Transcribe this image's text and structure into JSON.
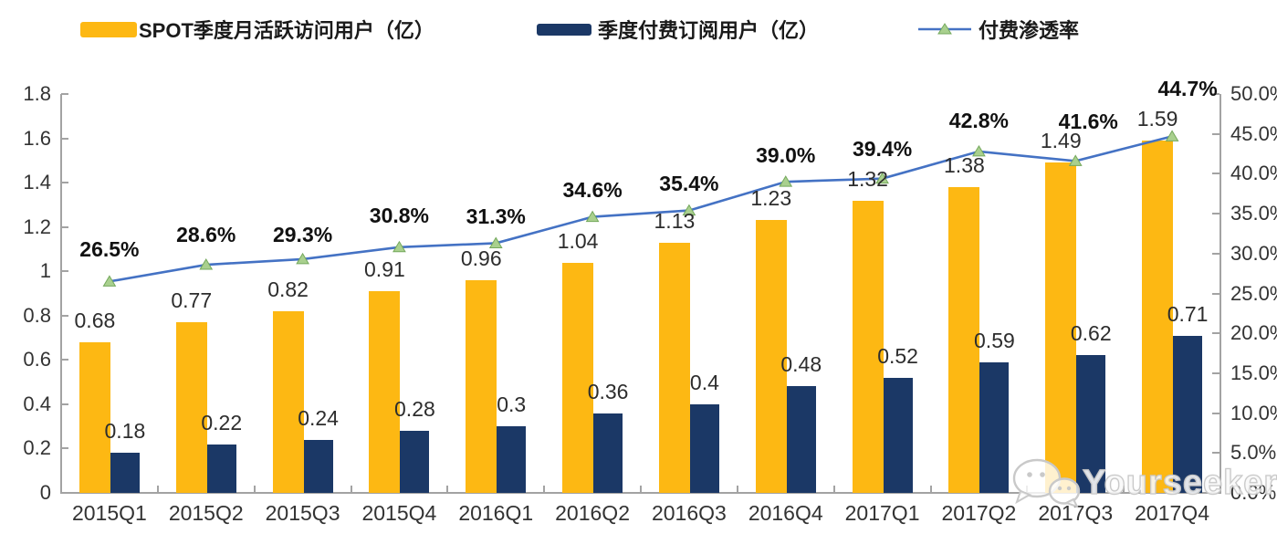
{
  "legend": {
    "items": [
      {
        "id": "mau",
        "label": "SPOT季度月活跃访问用户（亿）",
        "swatch": "bar",
        "color": "#FDB813"
      },
      {
        "id": "subs",
        "label": "季度付费订阅用户（亿）",
        "swatch": "bar",
        "color": "#1B3866"
      },
      {
        "id": "penetration",
        "label": "付费渗透率",
        "swatch": "line",
        "color": "#4472C4",
        "marker_color": "#A9D08E",
        "marker_edge": "#74A85C"
      }
    ]
  },
  "chart_data": {
    "type": "bar",
    "subtype": "combo-bar-line",
    "categories": [
      "2015Q1",
      "2015Q2",
      "2015Q3",
      "2015Q4",
      "2016Q1",
      "2016Q2",
      "2016Q3",
      "2016Q4",
      "2017Q1",
      "2017Q2",
      "2017Q3",
      "2017Q4"
    ],
    "series": [
      {
        "name": "SPOT季度月活跃访问用户（亿）",
        "type": "bar",
        "axis": "left",
        "color": "#FDB813",
        "values": [
          0.68,
          0.77,
          0.82,
          0.91,
          0.96,
          1.04,
          1.13,
          1.23,
          1.32,
          1.38,
          1.49,
          1.59
        ],
        "labels": [
          "0.68",
          "0.77",
          "0.82",
          "0.91",
          "0.96",
          "1.04",
          "1.13",
          "1.23",
          "1.32",
          "1.38",
          "1.49",
          "1.59"
        ]
      },
      {
        "name": "季度付费订阅用户（亿）",
        "type": "bar",
        "axis": "left",
        "color": "#1B3866",
        "values": [
          0.18,
          0.22,
          0.24,
          0.28,
          0.3,
          0.36,
          0.4,
          0.48,
          0.52,
          0.59,
          0.62,
          0.71
        ],
        "labels": [
          "0.18",
          "0.22",
          "0.24",
          "0.28",
          "0.3",
          "0.36",
          "0.4",
          "0.48",
          "0.52",
          "0.59",
          "0.62",
          "0.71"
        ]
      },
      {
        "name": "付费渗透率",
        "type": "line",
        "axis": "right",
        "color": "#4472C4",
        "marker": "triangle",
        "marker_color": "#A9D08E",
        "marker_edge": "#74A85C",
        "values": [
          26.5,
          28.6,
          29.3,
          30.8,
          31.3,
          34.6,
          35.4,
          39.0,
          39.4,
          42.8,
          41.6,
          44.7
        ],
        "labels": [
          "26.5%",
          "28.6%",
          "29.3%",
          "30.8%",
          "31.3%",
          "34.6%",
          "35.4%",
          "39.0%",
          "39.4%",
          "42.8%",
          "41.6%",
          "44.7%"
        ]
      }
    ],
    "left_axis": {
      "min": 0,
      "max": 1.8,
      "step": 0.2,
      "ticks": [
        "0",
        "0.2",
        "0.4",
        "0.6",
        "0.8",
        "1",
        "1.2",
        "1.4",
        "1.6",
        "1.8"
      ]
    },
    "right_axis": {
      "min": 0,
      "max": 50,
      "step": 5,
      "ticks": [
        "0.0%",
        "5.0%",
        "10.0%",
        "15.0%",
        "20.0%",
        "25.0%",
        "30.0%",
        "35.0%",
        "40.0%",
        "45.0%",
        "50.0%"
      ]
    },
    "grid": false,
    "legend_position": "top",
    "layout": {
      "pct_label_dy": [
        -22,
        -20,
        -14,
        -22,
        -16,
        -17,
        -17,
        -16,
        -20,
        -21,
        -30,
        -39
      ],
      "pct_label_dx": [
        0,
        0,
        0,
        0,
        0,
        0,
        0,
        0,
        0,
        0,
        14,
        17
      ]
    }
  },
  "watermark": {
    "text": "Yourseeker",
    "icon": "wechat-icon"
  }
}
